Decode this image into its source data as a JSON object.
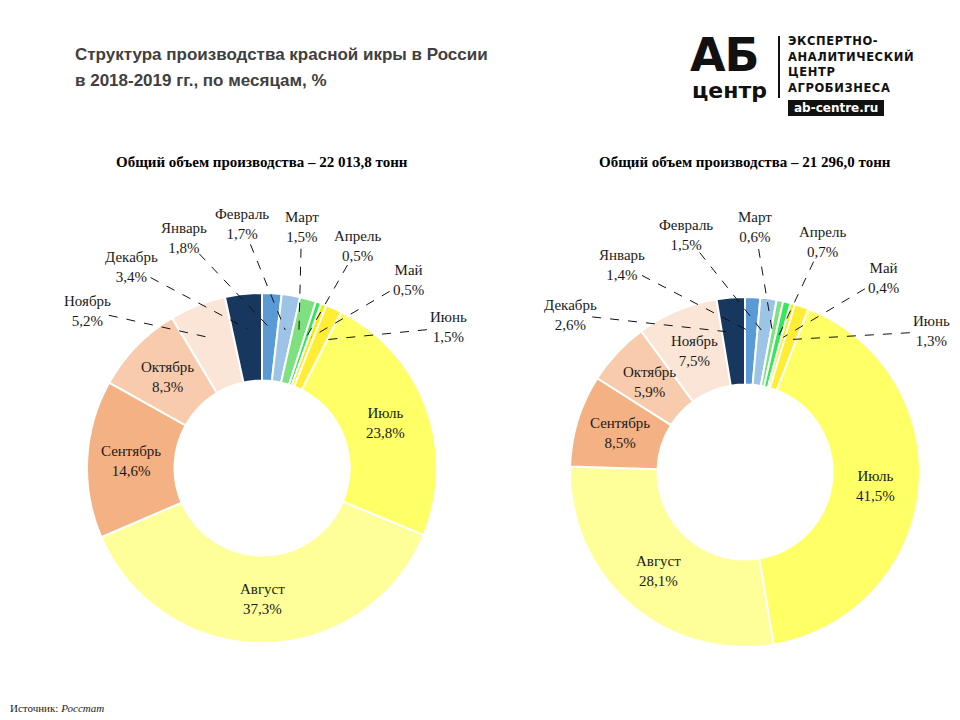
{
  "title": [
    "Структура производства красной икры в России",
    "в 2018-2019 гг., по месяцам, %"
  ],
  "logo": {
    "big": "АБ",
    "small": "центр",
    "lines": [
      "ЭКСПЕРТНО-",
      "АНАЛИТИЧЕСКИЙ",
      "ЦЕНТР",
      "АГРОБИЗНЕСА"
    ],
    "site": "ab-centre.ru"
  },
  "source": {
    "label": "Источник:",
    "text": "Росстат"
  },
  "chart_data": [
    {
      "type": "pie",
      "title": "Общий объем производства – 22 013,8 тонн",
      "categories": [
        "Январь",
        "Февраль",
        "Март",
        "Апрель",
        "Май",
        "Июнь",
        "Июль",
        "Август",
        "Сентябрь",
        "Октябрь",
        "Ноябрь",
        "Декабрь"
      ],
      "values": [
        1.8,
        1.7,
        1.5,
        0.5,
        0.5,
        1.5,
        23.8,
        37.3,
        14.6,
        8.3,
        5.2,
        3.4
      ],
      "value_labels": [
        "1,8%",
        "1,7%",
        "1,5%",
        "0,5%",
        "0,5%",
        "1,5%",
        "23,8%",
        "37,3%",
        "14,6%",
        "8,3%",
        "5,2%",
        "3,4%"
      ],
      "colors": [
        "#5B9BD5",
        "#9DC3E6",
        "#7FE07F",
        "#33E65C",
        "#F2F200",
        "#FFEE33",
        "#FFFF66",
        "#FFFF99",
        "#F4B183",
        "#F8CBAD",
        "#FBE5D6",
        "#17375E"
      ],
      "data_labels": true
    },
    {
      "type": "pie",
      "title": "Общий объем производства – 21 296,0 тонн",
      "categories": [
        "Январь",
        "Февраль",
        "Март",
        "Апрель",
        "Май",
        "Июнь",
        "Июль",
        "Август",
        "Сентябрь",
        "Октябрь",
        "Ноябрь",
        "Декабрь"
      ],
      "values": [
        1.4,
        1.5,
        0.6,
        0.7,
        0.4,
        1.3,
        41.5,
        28.1,
        8.5,
        5.9,
        7.5,
        2.6
      ],
      "value_labels": [
        "1,4%",
        "1,5%",
        "0,6%",
        "0,7%",
        "0,4%",
        "1,3%",
        "41,5%",
        "28,1%",
        "8,5%",
        "5,9%",
        "7,5%",
        "2,6%"
      ],
      "colors": [
        "#5B9BD5",
        "#9DC3E6",
        "#7FE07F",
        "#33E65C",
        "#F2F200",
        "#FFEE33",
        "#FFFF66",
        "#FFFF99",
        "#F4B183",
        "#F8CBAD",
        "#FBE5D6",
        "#17375E"
      ],
      "data_labels": true
    }
  ]
}
